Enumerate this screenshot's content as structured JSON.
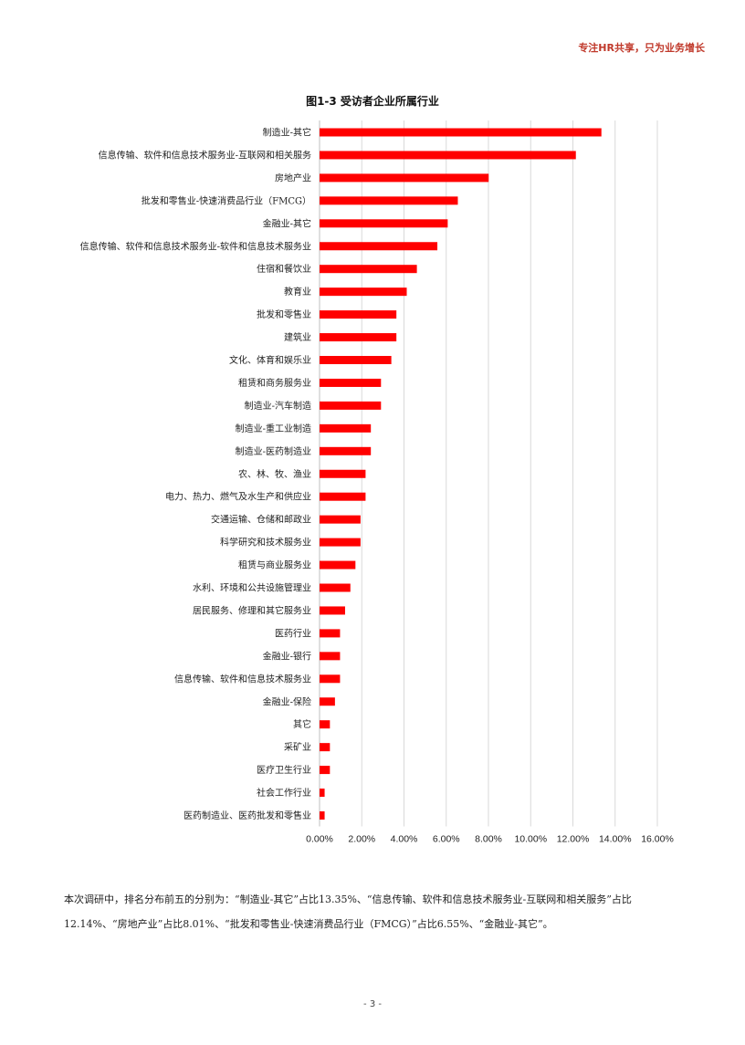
{
  "header": {
    "tagline": "专注HR共享，只为业务增长"
  },
  "chart_data": {
    "type": "bar",
    "orientation": "horizontal",
    "title": "图1-3 受访者企业所属行业",
    "categories": [
      "制造业-其它",
      "信息传输、软件和信息技术服务业-互联网和相关服务",
      "房地产业",
      "批发和零售业-快速消费品行业（FMCG）",
      "金融业-其它",
      "信息传输、软件和信息技术服务业-软件和信息技术服务业",
      "住宿和餐饮业",
      "教育业",
      "批发和零售业",
      "建筑业",
      "文化、体育和娱乐业",
      "租赁和商务服务业",
      "制造业-汽车制造",
      "制造业-重工业制造",
      "制造业-医药制造业",
      "农、林、牧、渔业",
      "电力、热力、燃气及水生产和供应业",
      "交通运输、仓储和邮政业",
      "科学研究和技术服务业",
      "租赁与商业服务业",
      "水利、环境和公共设施管理业",
      "居民服务、修理和其它服务业",
      "医药行业",
      "金融业-银行",
      "信息传输、软件和信息技术服务业",
      "金融业-保险",
      "其它",
      "采矿业",
      "医疗卫生行业",
      "社会工作行业",
      "医药制造业、医药批发和零售业"
    ],
    "values": [
      13.35,
      12.14,
      8.01,
      6.55,
      6.07,
      5.58,
      4.61,
      4.13,
      3.64,
      3.64,
      3.4,
      2.91,
      2.91,
      2.43,
      2.43,
      2.18,
      2.18,
      1.94,
      1.94,
      1.7,
      1.46,
      1.21,
      0.97,
      0.97,
      0.97,
      0.73,
      0.49,
      0.49,
      0.49,
      0.24,
      0.24
    ],
    "xlim": [
      0,
      16
    ],
    "xticks": [
      "0.00%",
      "2.00%",
      "4.00%",
      "6.00%",
      "8.00%",
      "10.00%",
      "12.00%",
      "14.00%",
      "16.00%"
    ],
    "grid": true,
    "bar_color": "#ff0000",
    "grid_color": "#d9d9d9"
  },
  "summary": {
    "text": "本次调研中，排名分布前五的分别为：“制造业-其它”占比13.35%、“信息传输、软件和信息技术服务业-互联网和相关服务”占比12.14%、“房地产业”占比8.01%、“批发和零售业-快速消费品行业（FMCG）”占比6.55%、“金融业-其它”。"
  },
  "footer": {
    "page_number": "- 3 -"
  }
}
